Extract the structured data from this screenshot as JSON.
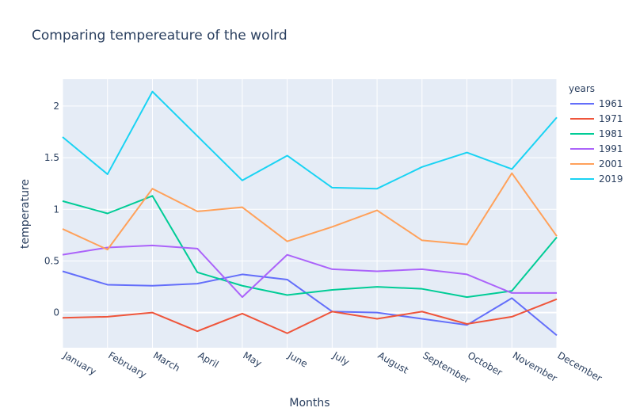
{
  "chart_data": {
    "type": "line",
    "title": "Comparing tempereature of the wolrd",
    "xlabel": "Months",
    "ylabel": "temperature",
    "categories": [
      "January",
      "February",
      "March",
      "April",
      "May",
      "June",
      "July",
      "August",
      "September",
      "October",
      "November",
      "December"
    ],
    "ylim": [
      -0.34,
      2.26
    ],
    "yticks": [
      0,
      0.5,
      1,
      1.5,
      2
    ],
    "ytick_labels": [
      "0",
      "0.5",
      "1",
      "1.5",
      "2"
    ],
    "grid": true,
    "legend": {
      "title": "years",
      "placement": "right"
    },
    "colors": {
      "plot_background": "#e5ecf6",
      "grid": "#ffffff",
      "text": "#2a3f5f"
    },
    "series": [
      {
        "name": "1961",
        "color": "#636efa",
        "values": [
          0.4,
          0.27,
          0.26,
          0.28,
          0.37,
          0.32,
          0.01,
          0.0,
          -0.06,
          -0.12,
          0.14,
          -0.22
        ]
      },
      {
        "name": "1971",
        "color": "#ef553b",
        "values": [
          -0.05,
          -0.04,
          0.0,
          -0.18,
          -0.01,
          -0.2,
          0.01,
          -0.06,
          0.01,
          -0.11,
          -0.04,
          0.13
        ]
      },
      {
        "name": "1981",
        "color": "#00cc96",
        "values": [
          1.08,
          0.96,
          1.13,
          0.39,
          0.26,
          0.17,
          0.22,
          0.25,
          0.23,
          0.15,
          0.21,
          0.73
        ]
      },
      {
        "name": "1991",
        "color": "#ab63fa",
        "values": [
          0.56,
          0.63,
          0.65,
          0.62,
          0.15,
          0.56,
          0.42,
          0.4,
          0.42,
          0.37,
          0.19,
          0.19
        ]
      },
      {
        "name": "2001",
        "color": "#ffa15a",
        "values": [
          0.81,
          0.61,
          1.2,
          0.98,
          1.02,
          0.69,
          0.83,
          0.99,
          0.7,
          0.66,
          1.35,
          0.74
        ]
      },
      {
        "name": "2019",
        "color": "#19d3f3",
        "values": [
          1.7,
          1.34,
          2.14,
          1.71,
          1.28,
          1.52,
          1.21,
          1.2,
          1.41,
          1.55,
          1.39,
          1.89
        ]
      }
    ]
  }
}
